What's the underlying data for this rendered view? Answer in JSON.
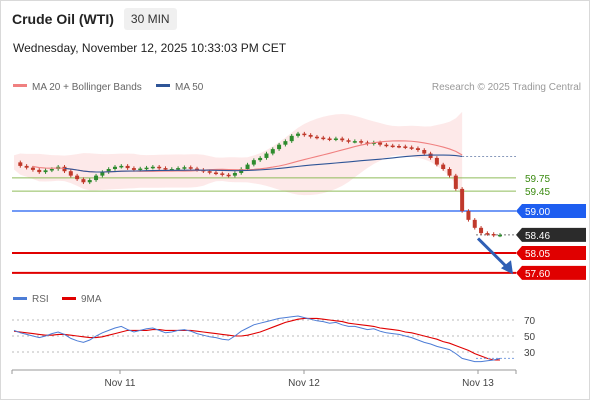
{
  "header": {
    "title": "Crude Oil (WTI)",
    "interval": "30 MIN",
    "datetime": "Wednesday, November 12, 2025 10:33:03 PM CET"
  },
  "legend": {
    "ma20_label": "MA 20 + Bollinger Bands",
    "ma50_label": "MA 50",
    "credit": "Research © 2025 Trading Central",
    "ma20_color": "#f08080",
    "ma50_color": "#2f5597"
  },
  "rsi_legend": {
    "rsi_label": "RSI",
    "ma_label": "9MA",
    "rsi_color": "#4d7dd6",
    "ma_color": "#e00000"
  },
  "chart_data": [
    {
      "type": "candlestick",
      "y_range": [
        57.2,
        60.9
      ],
      "x_ticks": [
        "Nov 11",
        "Nov 12",
        "Nov 13"
      ],
      "colors": {
        "up": "#2e8b2e",
        "down": "#c0392b"
      },
      "levels": [
        {
          "value": 59.75,
          "label": "59.75",
          "style": "line",
          "color": "#8fbc5a",
          "text_color": "#3a8a10"
        },
        {
          "value": 59.45,
          "label": "59.45",
          "style": "line",
          "color": "#8fbc5a",
          "text_color": "#3a8a10"
        },
        {
          "value": 59.0,
          "label": "59.00",
          "style": "tag",
          "color": "#1e5ef0"
        },
        {
          "value": 58.46,
          "label": "58.46",
          "style": "tag",
          "color": "#2b2b2b"
        },
        {
          "value": 58.05,
          "label": "58.05",
          "style": "tag",
          "color": "#e00000"
        },
        {
          "value": 57.6,
          "label": "57.60",
          "style": "tag",
          "color": "#e00000"
        }
      ],
      "close_series": [
        60.1,
        60.02,
        59.98,
        59.93,
        59.88,
        59.92,
        59.95,
        60.0,
        59.9,
        59.8,
        59.72,
        59.65,
        59.7,
        59.8,
        59.88,
        59.95,
        60.0,
        60.02,
        59.97,
        59.93,
        59.96,
        59.98,
        60.0,
        59.97,
        59.94,
        59.95,
        59.97,
        59.99,
        59.96,
        59.93,
        59.9,
        59.87,
        59.85,
        59.82,
        59.8,
        59.86,
        59.95,
        60.05,
        60.15,
        60.2,
        60.3,
        60.4,
        60.5,
        60.58,
        60.7,
        60.75,
        60.72,
        60.68,
        60.66,
        60.64,
        60.62,
        60.64,
        60.6,
        60.57,
        60.58,
        60.55,
        60.52,
        60.55,
        60.5,
        60.48,
        60.47,
        60.46,
        60.44,
        60.42,
        60.38,
        60.3,
        60.2,
        60.05,
        59.95,
        59.8,
        59.5,
        59.0,
        58.8,
        58.62,
        58.5,
        58.48,
        58.45,
        58.46
      ]
    },
    {
      "type": "line",
      "name": "RSI",
      "y_ticks": [
        70,
        50,
        30
      ],
      "y_range": [
        10,
        80
      ],
      "rsi": [
        57,
        54,
        52,
        50,
        48,
        50,
        53,
        55,
        52,
        47,
        44,
        42,
        45,
        50,
        54,
        57,
        60,
        62,
        58,
        55,
        57,
        59,
        60,
        57,
        54,
        55,
        57,
        58,
        56,
        53,
        51,
        49,
        48,
        46,
        45,
        50,
        56,
        60,
        64,
        66,
        68,
        70,
        72,
        73,
        74,
        75,
        73,
        71,
        69,
        68,
        66,
        67,
        64,
        62,
        62,
        60,
        58,
        59,
        56,
        54,
        53,
        52,
        50,
        48,
        45,
        42,
        40,
        37,
        35,
        33,
        28,
        22,
        20,
        18,
        18,
        19,
        20,
        22
      ],
      "ma9": [
        56,
        55,
        54,
        53,
        52,
        51,
        51,
        52,
        52,
        51,
        50,
        49,
        48,
        48,
        49,
        51,
        53,
        55,
        57,
        57,
        57,
        57,
        58,
        58,
        57,
        57,
        57,
        57,
        57,
        56,
        55,
        54,
        53,
        52,
        51,
        50,
        50,
        51,
        53,
        55,
        58,
        61,
        64,
        67,
        69,
        71,
        72,
        72,
        72,
        71,
        70,
        69,
        68,
        66,
        65,
        64,
        63,
        62,
        60,
        59,
        58,
        57,
        55,
        54,
        52,
        50,
        48,
        46,
        43,
        41,
        38,
        35,
        32,
        28,
        25,
        22,
        20,
        20
      ]
    }
  ]
}
